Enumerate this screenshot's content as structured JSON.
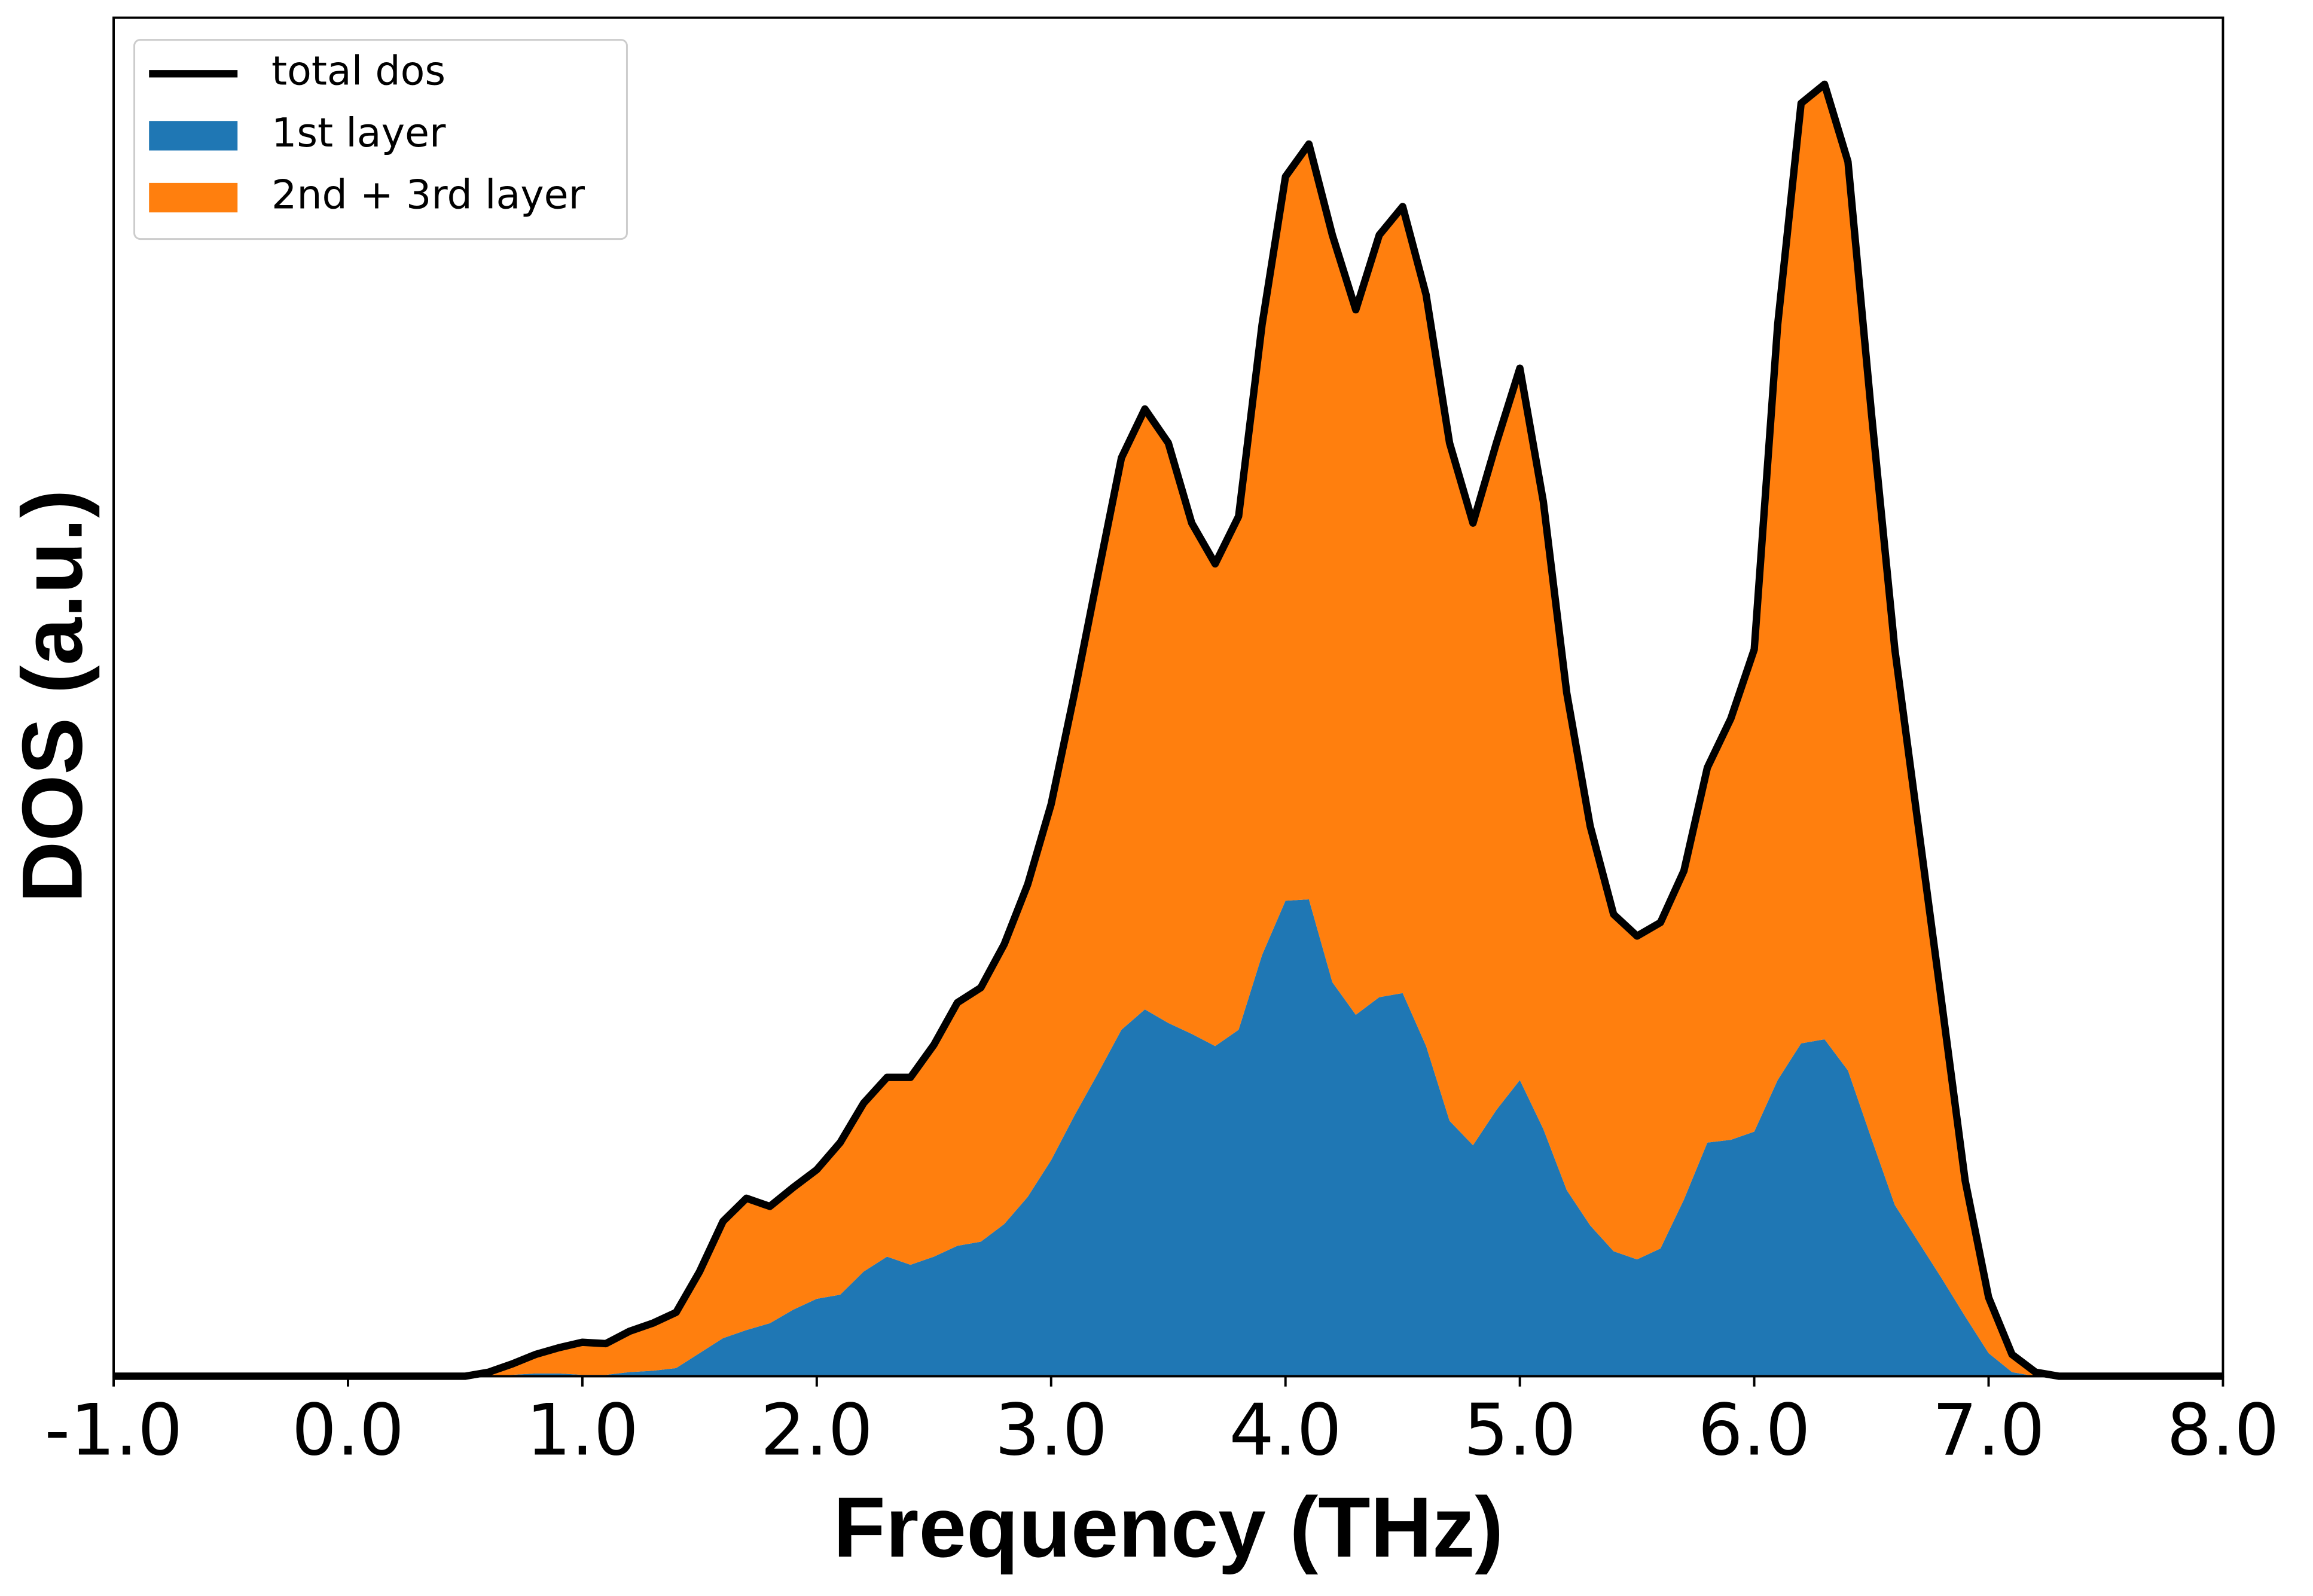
{
  "chart_data": {
    "type": "stacked_area",
    "xlabel": "Frequency (THz)",
    "ylabel": "DOS (a.u.)",
    "xlim": [
      -1,
      8
    ],
    "ylim": [
      0,
      100
    ],
    "xticks": [
      {
        "value": -1,
        "label": "-1.0"
      },
      {
        "value": 0,
        "label": "0.0"
      },
      {
        "value": 1,
        "label": "1.0"
      },
      {
        "value": 2,
        "label": "2.0"
      },
      {
        "value": 3,
        "label": "3.0"
      },
      {
        "value": 4,
        "label": "4.0"
      },
      {
        "value": 5,
        "label": "5.0"
      },
      {
        "value": 6,
        "label": "6.0"
      },
      {
        "value": 7,
        "label": "7.0"
      },
      {
        "value": 8,
        "label": "8.0"
      }
    ],
    "legend": "upper left",
    "x": [
      -1,
      0.5,
      0.6,
      0.7,
      0.8,
      0.9,
      1.0,
      1.1,
      1.2,
      1.3,
      1.4,
      1.5,
      1.6,
      1.7,
      1.8,
      1.9,
      2.0,
      2.1,
      2.2,
      2.3,
      2.4,
      2.5,
      2.6,
      2.7,
      2.8,
      2.9,
      3.0,
      3.1,
      3.2,
      3.3,
      3.4,
      3.5,
      3.6,
      3.7,
      3.8,
      3.9,
      4.0,
      4.1,
      4.2,
      4.3,
      4.4,
      4.5,
      4.6,
      4.7,
      4.8,
      4.9,
      5.0,
      5.1,
      5.2,
      5.3,
      5.4,
      5.5,
      5.6,
      5.7,
      5.8,
      5.9,
      6.0,
      6.1,
      6.2,
      6.3,
      6.4,
      6.5,
      6.6,
      6.7,
      6.8,
      6.9,
      7.0,
      7.1,
      7.2,
      7.3,
      8
    ],
    "series": [
      {
        "name": "total dos",
        "type": "line",
        "color": "#000000",
        "values": [
          0,
          0,
          0.3,
          0.9,
          1.6,
          2.1,
          2.5,
          2.4,
          3.3,
          3.9,
          4.7,
          7.7,
          11.4,
          13.1,
          12.5,
          13.9,
          15.2,
          17.2,
          20.1,
          22.0,
          22.0,
          24.4,
          27.5,
          28.6,
          31.8,
          36.2,
          42.1,
          50.3,
          59.0,
          67.6,
          71.2,
          68.7,
          62.8,
          59.8,
          63.3,
          77.4,
          88.3,
          90.7,
          84.0,
          78.5,
          84.0,
          86.1,
          79.6,
          68.7,
          62.8,
          68.7,
          74.2,
          64.4,
          50.3,
          40.5,
          34.0,
          32.4,
          33.4,
          37.2,
          44.8,
          48.4,
          53.5,
          77.4,
          93.7,
          95.1,
          89.4,
          70.9,
          53.5,
          40.5,
          27.5,
          14.4,
          5.8,
          1.6,
          0.3,
          0,
          0
        ]
      },
      {
        "name": "1st layer",
        "type": "area",
        "color": "#1f77b4",
        "values": [
          0,
          0,
          0,
          0.1,
          0.2,
          0.2,
          0.1,
          0.1,
          0.3,
          0.4,
          0.6,
          1.7,
          2.8,
          3.4,
          3.9,
          4.9,
          5.7,
          6.0,
          7.7,
          8.8,
          8.2,
          8.8,
          9.6,
          9.9,
          11.2,
          13.2,
          15.9,
          19.2,
          22.3,
          25.5,
          27.0,
          26.0,
          25.2,
          24.3,
          25.5,
          31.0,
          35.0,
          35.1,
          29.0,
          26.6,
          27.9,
          28.2,
          24.3,
          18.8,
          17.0,
          19.6,
          21.8,
          18.2,
          13.7,
          11.1,
          9.2,
          8.6,
          9.4,
          13.0,
          17.2,
          17.4,
          18.0,
          21.8,
          24.5,
          24.8,
          22.5,
          17.5,
          12.6,
          9.9,
          7.2,
          4.4,
          1.7,
          0.3,
          0,
          0,
          0
        ]
      },
      {
        "name": "2nd + 3rd layer",
        "type": "area",
        "color": "#ff7f0e",
        "values": [
          0,
          0,
          0.3,
          0.8,
          1.4,
          1.9,
          2.4,
          2.3,
          3.0,
          3.5,
          4.1,
          6.0,
          8.6,
          9.7,
          8.6,
          9.0,
          9.5,
          11.2,
          12.4,
          13.2,
          13.8,
          15.6,
          17.9,
          18.7,
          20.6,
          23.0,
          26.2,
          31.1,
          36.7,
          42.1,
          44.2,
          42.7,
          37.6,
          35.5,
          37.8,
          46.4,
          53.3,
          55.6,
          55.0,
          51.9,
          56.1,
          57.9,
          55.3,
          49.9,
          45.8,
          49.1,
          52.4,
          46.2,
          36.6,
          29.4,
          24.8,
          23.8,
          24.0,
          24.2,
          27.6,
          31.0,
          35.5,
          55.6,
          69.2,
          70.3,
          66.9,
          53.4,
          40.9,
          30.6,
          20.3,
          10.0,
          4.1,
          1.3,
          0.3,
          0,
          0
        ]
      }
    ]
  }
}
